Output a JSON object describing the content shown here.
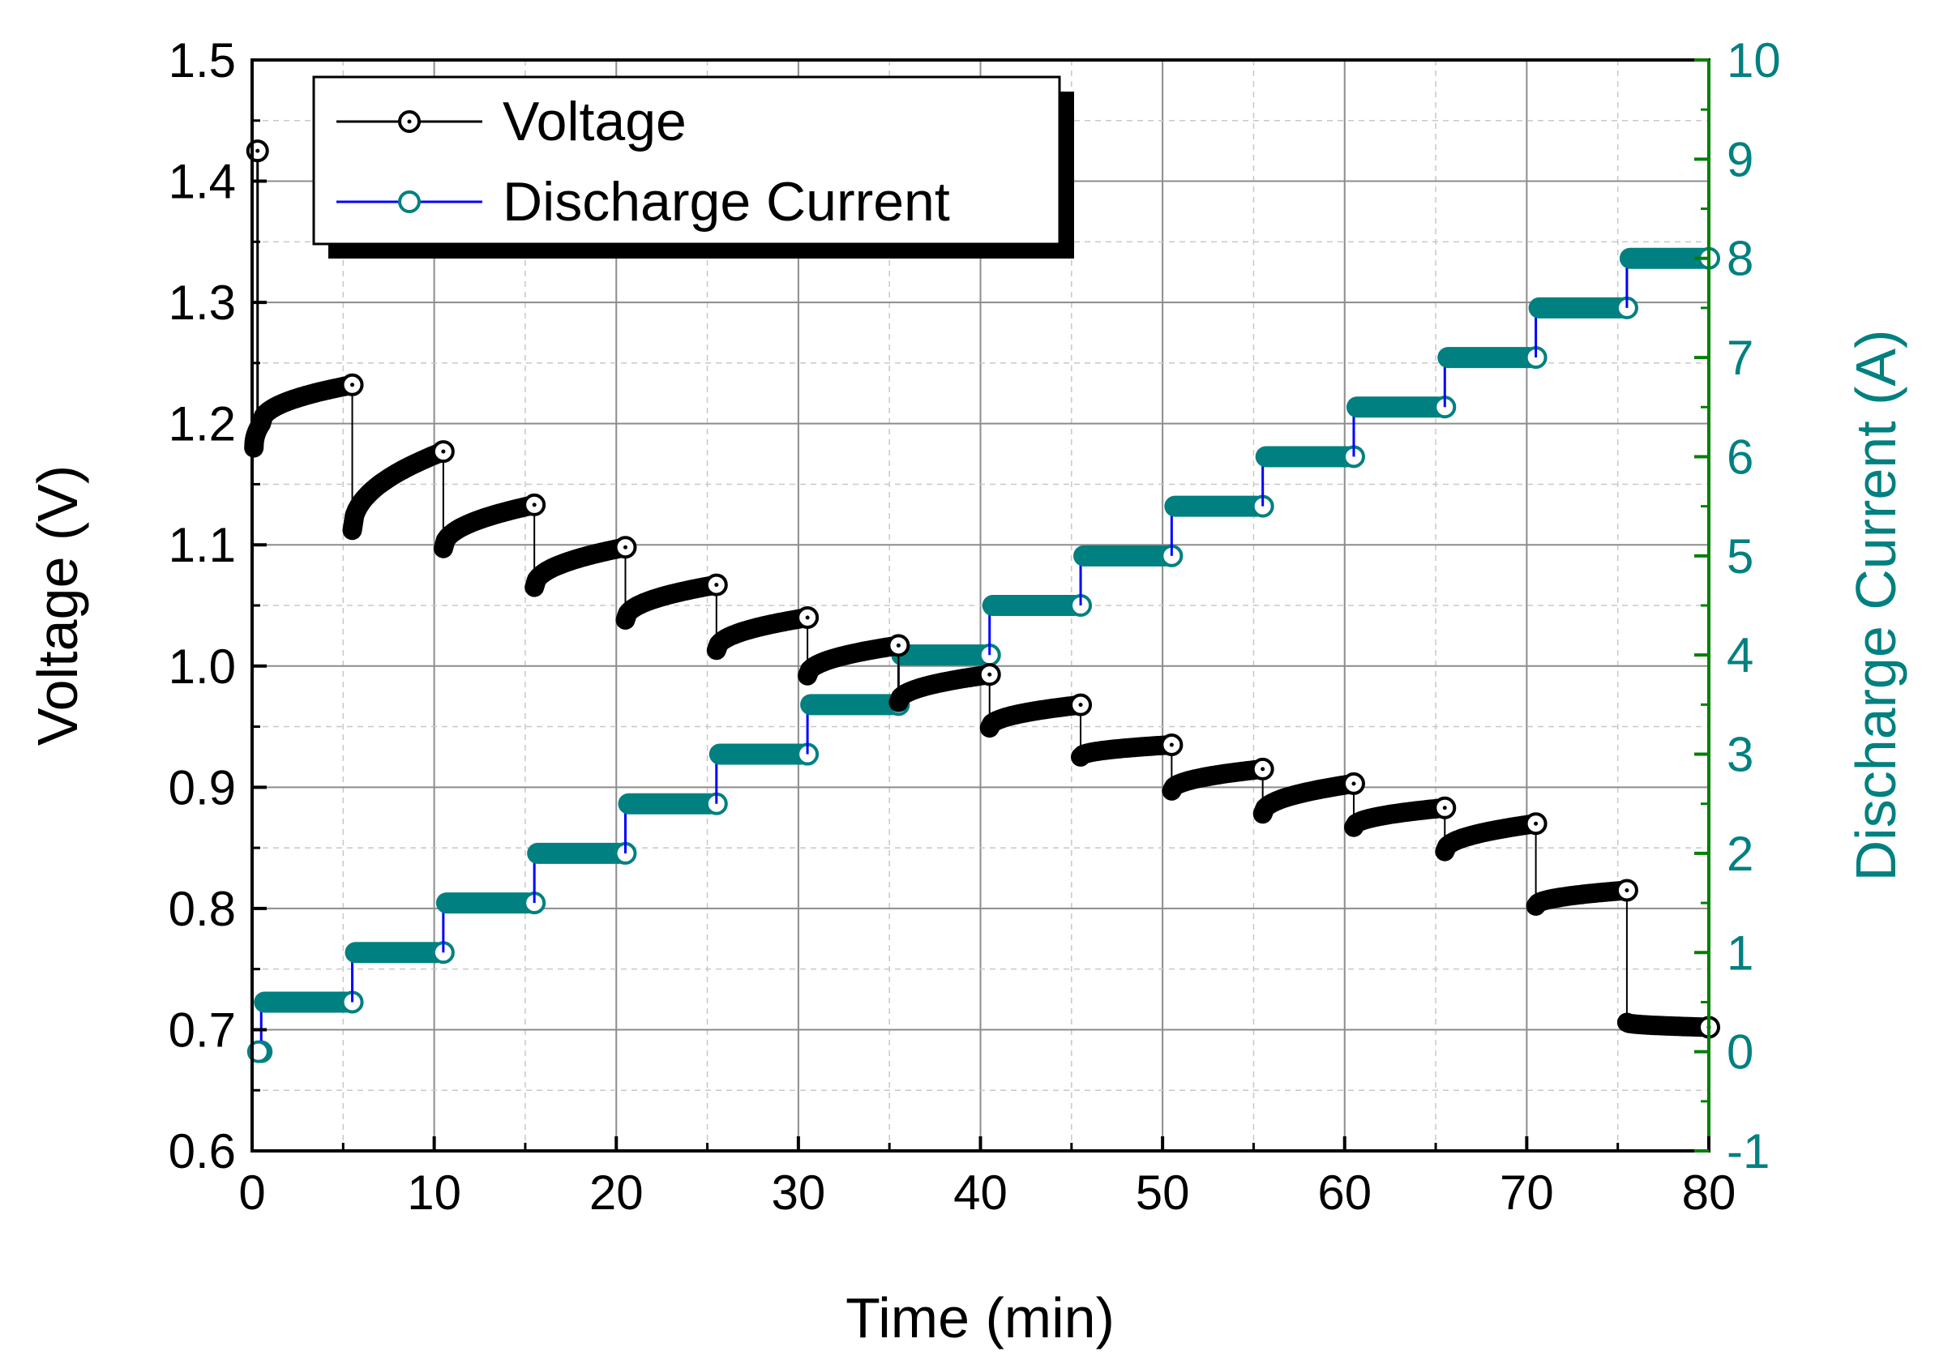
{
  "chart_data": {
    "type": "line",
    "title": "",
    "xlabel": "Time (min)",
    "ylabel": "Voltage (V)",
    "y2label": "Discharge Current (A)",
    "xlim": [
      0,
      80
    ],
    "ylim": [
      0.6,
      1.5
    ],
    "y2lim": [
      -1,
      10
    ],
    "x_ticks": [
      "0",
      "10",
      "20",
      "30",
      "40",
      "50",
      "60",
      "70",
      "80"
    ],
    "x_tick_values": [
      0,
      10,
      20,
      30,
      40,
      50,
      60,
      70,
      80
    ],
    "y_ticks": [
      "0.6",
      "0.7",
      "0.8",
      "0.9",
      "1.0",
      "1.1",
      "1.2",
      "1.3",
      "1.4",
      "1.5"
    ],
    "y_tick_values": [
      0.6,
      0.7,
      0.8,
      0.9,
      1.0,
      1.1,
      1.2,
      1.3,
      1.4,
      1.5
    ],
    "y2_ticks": [
      "-1",
      "0",
      "1",
      "2",
      "3",
      "4",
      "5",
      "6",
      "7",
      "8",
      "9",
      "10"
    ],
    "y2_tick_values": [
      -1,
      0,
      1,
      2,
      3,
      4,
      5,
      6,
      7,
      8,
      9,
      10
    ],
    "grid": true,
    "legend": {
      "position": "top-left"
    },
    "colors": {
      "voltage": "#000000",
      "current_marker": "#008080",
      "current_line": "#0000ff",
      "right_axis": "#008000"
    },
    "series": [
      {
        "name": "Voltage",
        "axis": "left",
        "segments": [
          {
            "start": 0.1,
            "end": 0.5,
            "v0": 1.18,
            "v1": 1.2
          },
          {
            "start": 0.5,
            "end": 5.5,
            "v0": 1.2,
            "v1": 1.232
          },
          {
            "start": 5.5,
            "end": 10.5,
            "v0": 1.112,
            "v1": 1.177
          },
          {
            "start": 10.5,
            "end": 15.5,
            "v0": 1.097,
            "v1": 1.133
          },
          {
            "start": 15.5,
            "end": 20.5,
            "v0": 1.065,
            "v1": 1.098
          },
          {
            "start": 20.5,
            "end": 25.5,
            "v0": 1.038,
            "v1": 1.067
          },
          {
            "start": 25.5,
            "end": 30.5,
            "v0": 1.013,
            "v1": 1.04
          },
          {
            "start": 30.5,
            "end": 35.5,
            "v0": 0.992,
            "v1": 1.017
          },
          {
            "start": 35.5,
            "end": 40.5,
            "v0": 0.97,
            "v1": 0.993
          },
          {
            "start": 40.5,
            "end": 45.5,
            "v0": 0.949,
            "v1": 0.968
          },
          {
            "start": 45.5,
            "end": 50.5,
            "v0": 0.925,
            "v1": 0.935
          },
          {
            "start": 50.5,
            "end": 55.5,
            "v0": 0.897,
            "v1": 0.915
          },
          {
            "start": 55.5,
            "end": 60.5,
            "v0": 0.878,
            "v1": 0.903
          },
          {
            "start": 60.5,
            "end": 65.5,
            "v0": 0.867,
            "v1": 0.883
          },
          {
            "start": 65.5,
            "end": 70.5,
            "v0": 0.847,
            "v1": 0.87
          },
          {
            "start": 70.5,
            "end": 75.5,
            "v0": 0.802,
            "v1": 0.815
          },
          {
            "start": 75.5,
            "end": 80.0,
            "v0": 0.706,
            "v1": 0.702
          }
        ],
        "points": [
          {
            "x": 0.3,
            "y": 1.425
          },
          {
            "x": 5.5,
            "y": 1.232
          },
          {
            "x": 10.5,
            "y": 1.177
          },
          {
            "x": 15.5,
            "y": 1.133
          },
          {
            "x": 20.5,
            "y": 1.098
          },
          {
            "x": 25.5,
            "y": 1.067
          },
          {
            "x": 30.5,
            "y": 1.04
          },
          {
            "x": 35.5,
            "y": 1.017
          },
          {
            "x": 40.5,
            "y": 0.993
          },
          {
            "x": 45.5,
            "y": 0.968
          },
          {
            "x": 50.5,
            "y": 0.935
          },
          {
            "x": 55.5,
            "y": 0.915
          },
          {
            "x": 60.5,
            "y": 0.903
          },
          {
            "x": 65.5,
            "y": 0.883
          },
          {
            "x": 70.5,
            "y": 0.87
          },
          {
            "x": 75.5,
            "y": 0.815
          },
          {
            "x": 80.0,
            "y": 0.702
          }
        ]
      },
      {
        "name": "Discharge Current",
        "axis": "right",
        "steps": [
          {
            "start": 0.0,
            "end": 0.5,
            "value": 0.0
          },
          {
            "start": 0.5,
            "end": 5.5,
            "value": 0.5
          },
          {
            "start": 5.5,
            "end": 10.5,
            "value": 1.0
          },
          {
            "start": 10.5,
            "end": 15.5,
            "value": 1.5
          },
          {
            "start": 15.5,
            "end": 20.5,
            "value": 2.0
          },
          {
            "start": 20.5,
            "end": 25.5,
            "value": 2.5
          },
          {
            "start": 25.5,
            "end": 30.5,
            "value": 3.0
          },
          {
            "start": 30.5,
            "end": 35.5,
            "value": 3.5
          },
          {
            "start": 35.5,
            "end": 40.5,
            "value": 4.0
          },
          {
            "start": 40.5,
            "end": 45.5,
            "value": 4.5
          },
          {
            "start": 45.5,
            "end": 50.5,
            "value": 5.0
          },
          {
            "start": 50.5,
            "end": 55.5,
            "value": 5.5
          },
          {
            "start": 55.5,
            "end": 60.5,
            "value": 6.0
          },
          {
            "start": 60.5,
            "end": 65.5,
            "value": 6.5
          },
          {
            "start": 65.5,
            "end": 70.5,
            "value": 7.0
          },
          {
            "start": 70.5,
            "end": 75.5,
            "value": 7.5
          },
          {
            "start": 75.5,
            "end": 80.0,
            "value": 8.0
          }
        ]
      }
    ]
  }
}
